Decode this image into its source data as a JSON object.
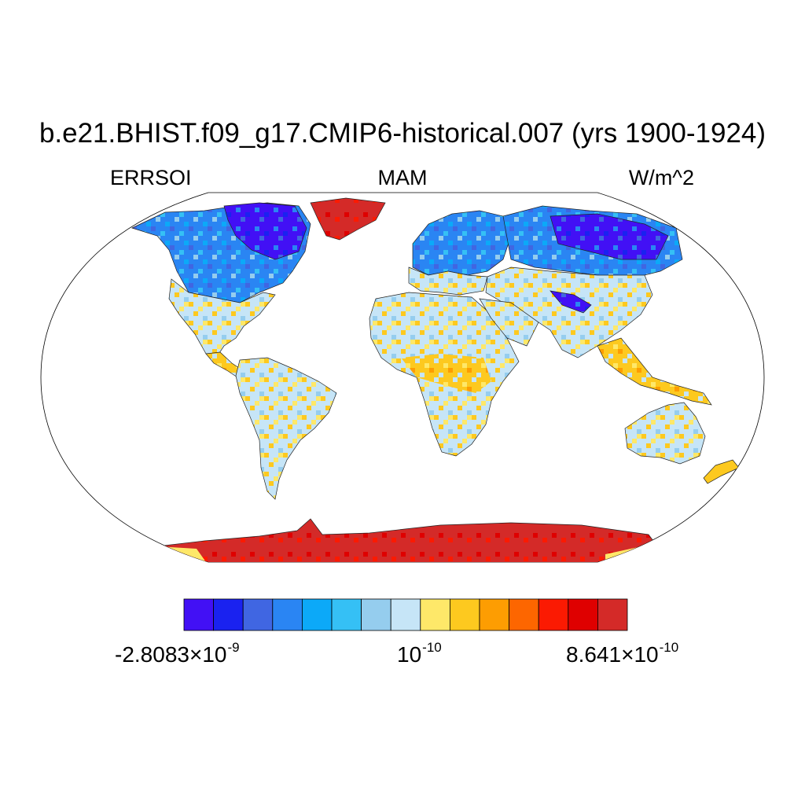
{
  "title": "b.e21.BHIST.f09_g17.CMIP6-historical.007 (yrs 1900-1924)",
  "subtitle_left": "ERRSOI",
  "subtitle_center": "MAM",
  "subtitle_right": "W/m^2",
  "colorbar": {
    "colors": [
      "#4210f5",
      "#1a22f0",
      "#4066e2",
      "#2a85f3",
      "#0ca9f8",
      "#35c0f5",
      "#95cdee",
      "#c6e5f7",
      "#fee869",
      "#fdc91f",
      "#fd9d02",
      "#fd6600",
      "#fb1a02",
      "#df0000",
      "#d42a28"
    ],
    "label_left": {
      "mantissa": "-2.8083",
      "times": "×",
      "base": "10",
      "exponent": "-9"
    },
    "label_mid": {
      "base": "10",
      "exponent": "-10"
    },
    "label_right": {
      "mantissa": "8.641",
      "times": "×",
      "base": "10",
      "exponent": "-10"
    }
  },
  "map": {
    "projection": "robinson",
    "land_colors": {
      "tropics_light": "#c6e5f7",
      "tropics_warm": "#fdc91f",
      "tropics_yellow": "#fee869",
      "boreal_blue": "#2a85f3",
      "boreal_light": "#35c0f5",
      "arctic_deep": "#4210f5",
      "ice_red": "#d42a28",
      "ice_bright": "#df0000"
    }
  }
}
